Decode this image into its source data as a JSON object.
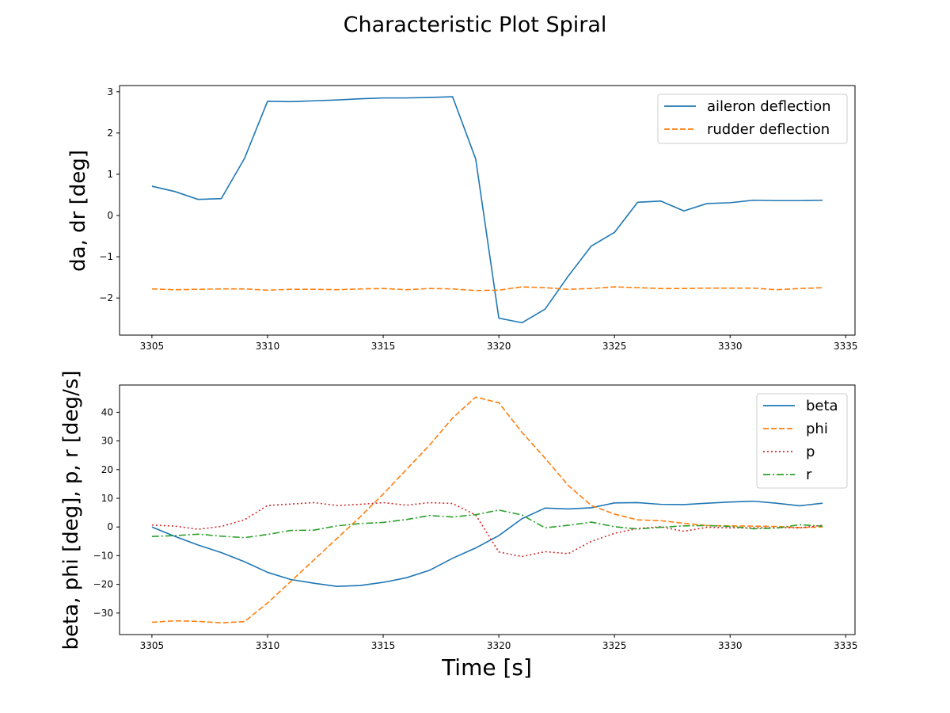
{
  "figure": {
    "title": "Characteristic Plot Spiral"
  },
  "chart_data": [
    {
      "type": "line",
      "ylabel": "da, dr [deg]",
      "xlabel": "",
      "xlim": [
        3303.6,
        3335.4
      ],
      "ylim": [
        -2.9,
        3.15
      ],
      "xticks": [
        3305,
        3310,
        3315,
        3320,
        3325,
        3330,
        3335
      ],
      "yticks": [
        -2,
        -1,
        0,
        1,
        2,
        3
      ],
      "legend_position": "top-right",
      "x": [
        3305,
        3306,
        3307,
        3308,
        3309,
        3310,
        3311,
        3312,
        3313,
        3314,
        3315,
        3316,
        3317,
        3318,
        3319,
        3320,
        3321,
        3322,
        3323,
        3324,
        3325,
        3326,
        3327,
        3328,
        3329,
        3330,
        3331,
        3332,
        3333,
        3334
      ],
      "series": [
        {
          "name": "aileron deflection",
          "color": "#1f77b4",
          "style": "solid",
          "values": [
            0.71,
            0.58,
            0.39,
            0.41,
            1.38,
            2.77,
            2.76,
            2.78,
            2.8,
            2.83,
            2.85,
            2.85,
            2.86,
            2.88,
            1.37,
            -2.49,
            -2.6,
            -2.27,
            -1.47,
            -0.74,
            -0.41,
            0.32,
            0.35,
            0.11,
            0.29,
            0.31,
            0.37,
            0.36,
            0.36,
            0.37
          ]
        },
        {
          "name": "rudder deflection",
          "color": "#ff7f0e",
          "style": "dashed",
          "values": [
            -1.78,
            -1.8,
            -1.79,
            -1.78,
            -1.78,
            -1.81,
            -1.79,
            -1.79,
            -1.8,
            -1.78,
            -1.77,
            -1.8,
            -1.77,
            -1.78,
            -1.82,
            -1.81,
            -1.73,
            -1.75,
            -1.79,
            -1.77,
            -1.73,
            -1.75,
            -1.77,
            -1.77,
            -1.76,
            -1.76,
            -1.76,
            -1.8,
            -1.77,
            -1.75
          ]
        }
      ]
    },
    {
      "type": "line",
      "ylabel": "beta, phi [deg], p, r [deg/s]",
      "xlabel": "Time [s]",
      "xlim": [
        3303.6,
        3335.4
      ],
      "ylim": [
        -37.5,
        49.5
      ],
      "xticks": [
        3305,
        3310,
        3315,
        3320,
        3325,
        3330,
        3335
      ],
      "yticks": [
        -30,
        -20,
        -10,
        0,
        10,
        20,
        30,
        40
      ],
      "legend_position": "top-right",
      "x": [
        3305,
        3306,
        3307,
        3308,
        3309,
        3310,
        3311,
        3312,
        3313,
        3314,
        3315,
        3316,
        3317,
        3318,
        3319,
        3320,
        3321,
        3322,
        3323,
        3324,
        3325,
        3326,
        3327,
        3328,
        3329,
        3330,
        3331,
        3332,
        3333,
        3334
      ],
      "series": [
        {
          "name": "beta",
          "color": "#1f77b4",
          "style": "solid",
          "values": [
            0.0,
            -3.3,
            -6.3,
            -8.9,
            -12.1,
            -15.8,
            -18.3,
            -19.6,
            -20.7,
            -20.4,
            -19.3,
            -17.7,
            -15.1,
            -10.9,
            -7.3,
            -3.0,
            2.9,
            6.6,
            6.3,
            6.7,
            8.4,
            8.5,
            7.9,
            7.8,
            8.3,
            8.7,
            9.0,
            8.3,
            7.4,
            8.3
          ]
        },
        {
          "name": "phi",
          "color": "#ff7f0e",
          "style": "dashed",
          "values": [
            -33.2,
            -32.7,
            -32.9,
            -33.4,
            -33.0,
            -26.5,
            -19.0,
            -11.5,
            -4.0,
            3.5,
            11.5,
            20.0,
            28.5,
            38.0,
            45.3,
            43.3,
            33.0,
            24.0,
            14.5,
            7.5,
            4.5,
            2.5,
            2.2,
            1.3,
            0.5,
            0.4,
            0.3,
            0.2,
            -0.2,
            0.0
          ]
        },
        {
          "name": "p",
          "color": "#d62728",
          "style": "dotted",
          "values": [
            0.7,
            0.3,
            -0.8,
            0.2,
            2.5,
            7.5,
            8.0,
            8.5,
            7.5,
            7.9,
            8.5,
            7.6,
            8.5,
            8.2,
            4.2,
            -8.7,
            -10.3,
            -8.6,
            -9.3,
            -5.0,
            -2.2,
            -0.5,
            0.1,
            -1.5,
            -0.1,
            -0.3,
            -0.3,
            -0.2,
            -0.3,
            0.6
          ]
        },
        {
          "name": "r",
          "color": "#2ca02c",
          "style": "dashdot",
          "values": [
            -3.3,
            -3.0,
            -2.5,
            -3.2,
            -3.7,
            -2.6,
            -1.2,
            -1.1,
            0.4,
            1.2,
            1.6,
            2.6,
            4.0,
            3.5,
            4.3,
            5.9,
            4.2,
            -0.3,
            0.6,
            1.7,
            0.1,
            -0.7,
            -0.1,
            0.4,
            0.5,
            0.2,
            -0.6,
            -0.4,
            0.8,
            0.3
          ]
        }
      ]
    }
  ]
}
